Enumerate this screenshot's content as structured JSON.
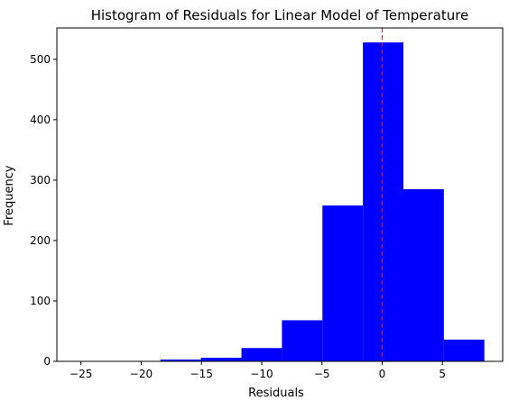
{
  "chart_data": {
    "type": "bar",
    "title": "Histogram of Residuals for Linear Model of Temperature",
    "xlabel": "Residuals",
    "ylabel": "Frequency",
    "xlim": [
      -27,
      10
    ],
    "ylim": [
      0,
      552
    ],
    "xticks": [
      -25,
      -20,
      -15,
      -10,
      -5,
      0,
      5
    ],
    "yticks": [
      0,
      100,
      200,
      300,
      400,
      500
    ],
    "bin_edges": [
      -18.4,
      -15.04,
      -11.68,
      -8.32,
      -4.96,
      -1.6,
      1.76,
      5.12,
      8.48
    ],
    "bins": [
      {
        "start": -18.4,
        "end": -15.04,
        "value": 3
      },
      {
        "start": -15.04,
        "end": -11.68,
        "value": 6
      },
      {
        "start": -11.68,
        "end": -8.32,
        "value": 22
      },
      {
        "start": -8.32,
        "end": -4.96,
        "value": 68
      },
      {
        "start": -4.96,
        "end": -1.6,
        "value": 258
      },
      {
        "start": -1.6,
        "end": 1.76,
        "value": 528
      },
      {
        "start": 1.76,
        "end": 5.12,
        "value": 285
      },
      {
        "start": 5.12,
        "end": 8.48,
        "value": 36
      }
    ],
    "bar_color": "#0000ff",
    "reference_line": {
      "x": 0,
      "color": "#d62728",
      "style": "dashed"
    },
    "grid": false,
    "legend": "none"
  }
}
